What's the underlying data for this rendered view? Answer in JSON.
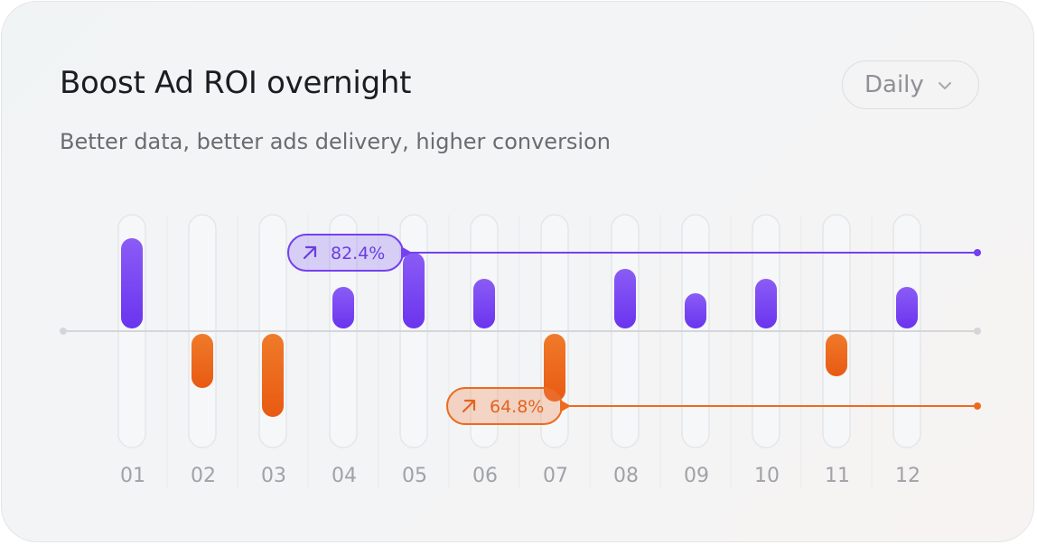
{
  "card": {
    "title": "Boost Ad ROI overnight",
    "subtitle": "Better data, better ads delivery, higher conversion"
  },
  "period_select": {
    "value": "Daily",
    "icon": "chevron-down-icon"
  },
  "colors": {
    "positive": "#7440f0",
    "negative": "#ee6a1e",
    "track": "#f6f7f8",
    "baseline": "#d4d6db",
    "tick": "#a0a2a8"
  },
  "chart_data": {
    "type": "bar",
    "categories": [
      "01",
      "02",
      "03",
      "04",
      "05",
      "06",
      "07",
      "08",
      "09",
      "10",
      "11",
      "12"
    ],
    "values": [
      100,
      -60,
      -92,
      46,
      84,
      55,
      -75,
      66,
      39,
      55,
      -47,
      46
    ],
    "ylim": [
      -130,
      130
    ],
    "grid": false,
    "annotations": [
      {
        "label": "82.4%",
        "icon": "arrow-up-right-icon",
        "series": "positive",
        "level": 88
      },
      {
        "label": "64.8%",
        "icon": "arrow-up-right-icon",
        "series": "negative",
        "level": -82
      }
    ]
  }
}
